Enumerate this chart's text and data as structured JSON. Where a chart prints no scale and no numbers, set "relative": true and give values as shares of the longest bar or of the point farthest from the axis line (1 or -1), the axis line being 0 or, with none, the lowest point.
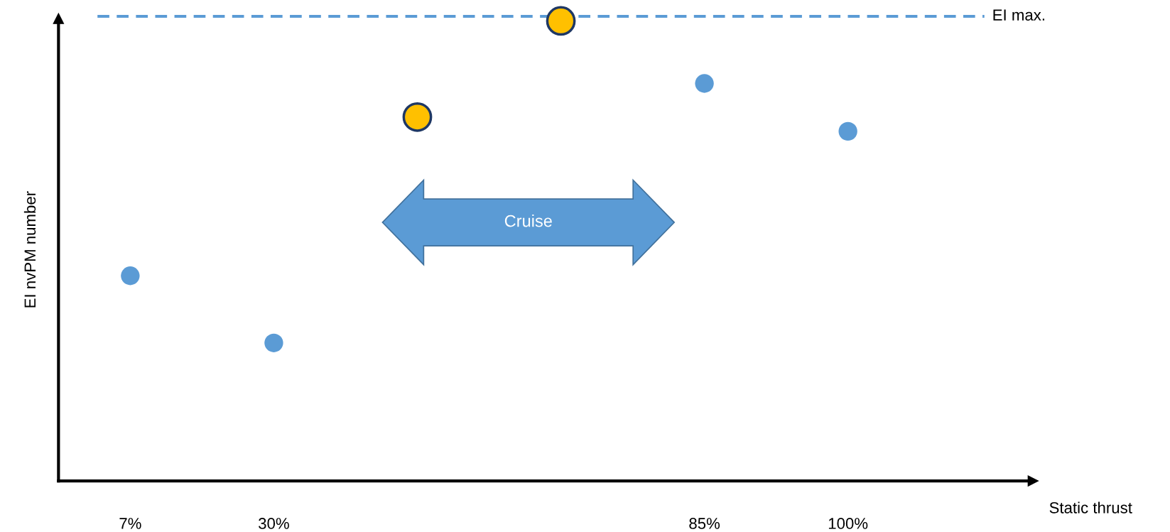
{
  "chart_data": {
    "type": "scatter",
    "relative": true,
    "xlabel": "Static thrust",
    "ylabel": "EI nvPM number",
    "categories": [
      "7%",
      "30%",
      null,
      null,
      "85%",
      "100%"
    ],
    "series": [
      {
        "color": "#5b9bd5",
        "values": [
          0.446,
          0.3,
          null,
          null,
          0.864,
          0.76
        ]
      },
      {
        "color": "#ffc000",
        "values": [
          null,
          null,
          0.791,
          1.0,
          null,
          null
        ]
      }
    ],
    "ref_lines": [
      {
        "axis": "y",
        "value": 1.01,
        "label": "EI max.",
        "color": "#5b9bd5",
        "line_style": "dashed"
      }
    ],
    "annotations": [
      "Cruise"
    ],
    "marker": "circle",
    "grid": false,
    "legend": false
  }
}
